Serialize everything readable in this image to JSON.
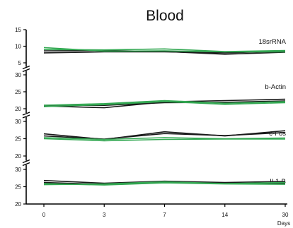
{
  "chart_data": {
    "type": "line",
    "title": "Blood",
    "xlabel": "Days",
    "x_categories": [
      "0",
      "3",
      "7",
      "14",
      "30"
    ],
    "colors": {
      "black": "#1a1a1a",
      "green": "#33a852"
    },
    "panels": [
      {
        "name": "18srRNA",
        "ylim": [
          5,
          15
        ],
        "yticks": [
          "5",
          "10",
          "15"
        ],
        "series": [
          {
            "color": "black",
            "values": [
              8.0,
              8.3,
              8.3,
              8.0,
              8.5
            ]
          },
          {
            "color": "black",
            "values": [
              8.6,
              8.7,
              8.4,
              7.6,
              8.2
            ]
          },
          {
            "color": "green",
            "values": [
              9.6,
              8.5,
              8.6,
              8.3,
              8.3
            ]
          },
          {
            "color": "green",
            "values": [
              9.0,
              8.9,
              9.2,
              8.4,
              8.7
            ]
          }
        ]
      },
      {
        "name": "b-Actin",
        "ylim": [
          20,
          30
        ],
        "yticks": [
          "20",
          "25",
          "30"
        ],
        "series": [
          {
            "color": "black",
            "values": [
              20.8,
              20.3,
              22.0,
              22.4,
              22.8
            ]
          },
          {
            "color": "black",
            "values": [
              21.0,
              21.0,
              21.8,
              21.9,
              22.3
            ]
          },
          {
            "color": "green",
            "values": [
              21.0,
              21.5,
              22.4,
              21.6,
              22.1
            ]
          },
          {
            "color": "green",
            "values": [
              20.6,
              21.2,
              22.1,
              21.3,
              21.8
            ]
          }
        ]
      },
      {
        "name": "c-Fos",
        "ylim": [
          20,
          30
        ],
        "yticks": [
          "20",
          "25",
          "30"
        ],
        "series": [
          {
            "color": "black",
            "values": [
              26.4,
              24.8,
              27.0,
              25.8,
              27.3
            ]
          },
          {
            "color": "black",
            "values": [
              25.8,
              24.9,
              26.5,
              25.9,
              26.8
            ]
          },
          {
            "color": "green",
            "values": [
              25.0,
              24.4,
              24.8,
              24.9,
              24.9
            ]
          },
          {
            "color": "green",
            "values": [
              25.3,
              24.8,
              25.3,
              25.0,
              25.2
            ]
          }
        ]
      },
      {
        "name": "IL1-B",
        "ylim": [
          20,
          30
        ],
        "yticks": [
          "20",
          "25",
          "30"
        ],
        "series": [
          {
            "color": "black",
            "values": [
              26.8,
              26.0,
              26.6,
              26.2,
              26.5
            ]
          },
          {
            "color": "black",
            "values": [
              26.2,
              25.7,
              26.3,
              25.9,
              26.0
            ]
          },
          {
            "color": "green",
            "values": [
              25.6,
              25.8,
              26.4,
              25.9,
              26.2
            ]
          },
          {
            "color": "green",
            "values": [
              25.9,
              25.5,
              26.1,
              25.8,
              25.7
            ]
          }
        ]
      }
    ]
  }
}
